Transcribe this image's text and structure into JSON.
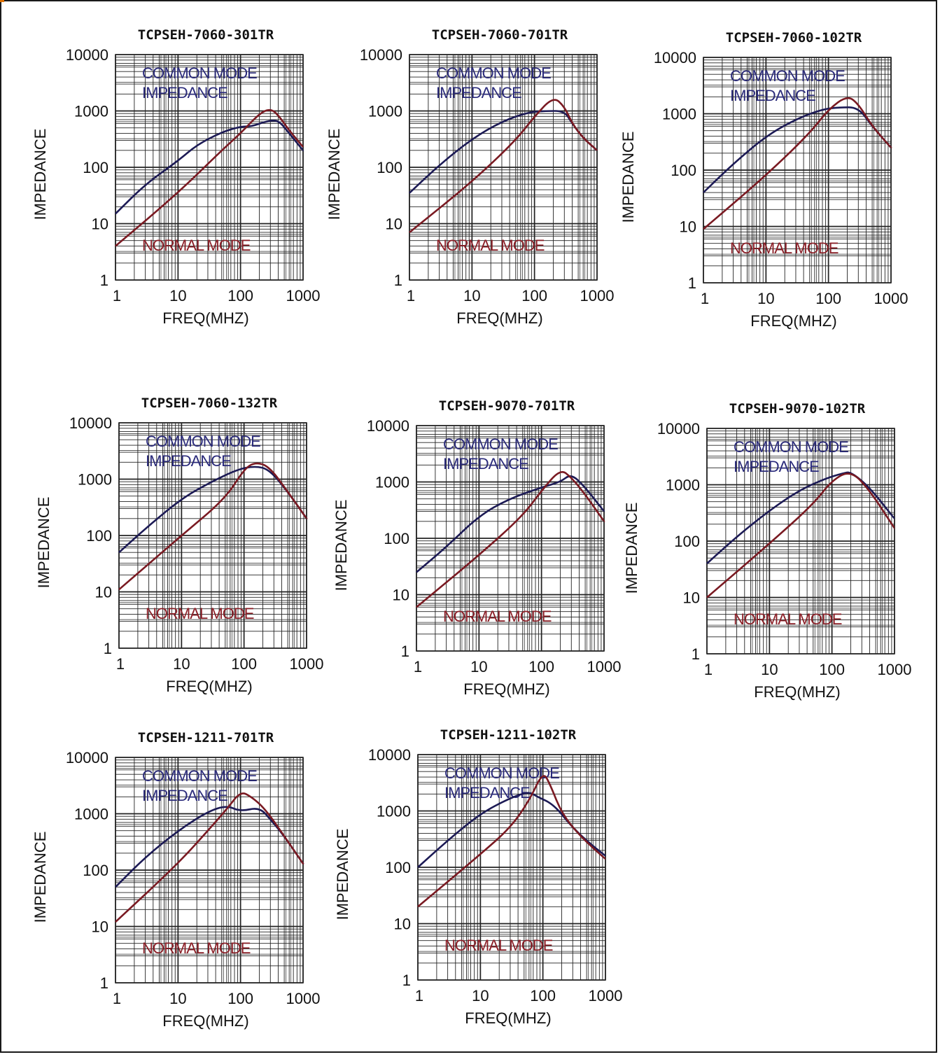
{
  "colors": {
    "common_mode": "#1c1a55",
    "normal_mode": "#7a1a22",
    "grid": "#222222",
    "annotation_common": "#2a2a7a",
    "annotation_normal": "#8a1e26"
  },
  "labels": {
    "ylabel": "IMPEDANCE",
    "xlabel": "FREQ(MHZ)",
    "common_line1": "COMMON MODE",
    "common_line2": "IMPEDANCE",
    "normal": "NORMAL MODE"
  },
  "axes": {
    "x_scale": "log",
    "y_scale": "log",
    "xlim": [
      1,
      1000
    ],
    "ylim": [
      1,
      10000
    ],
    "x_ticks": [
      "1",
      "10",
      "100",
      "1000"
    ],
    "y_ticks": [
      "1",
      "10",
      "100",
      "1000",
      "10000"
    ],
    "grid": true
  },
  "chart_data": [
    {
      "type": "line",
      "title": "TCPSEH-7060-301TR",
      "xlabel": "FREQ(MHZ)",
      "ylabel": "IMPEDANCE",
      "xlim": [
        1,
        1000
      ],
      "ylim": [
        1,
        10000
      ],
      "series": [
        {
          "name": "COMMON MODE IMPEDANCE",
          "points": [
            [
              1,
              15
            ],
            [
              3,
              50
            ],
            [
              10,
              130
            ],
            [
              20,
              250
            ],
            [
              50,
              420
            ],
            [
              100,
              530
            ],
            [
              150,
              530
            ],
            [
              250,
              650
            ],
            [
              400,
              700
            ],
            [
              600,
              400
            ],
            [
              1000,
              200
            ]
          ]
        },
        {
          "name": "NORMAL MODE",
          "points": [
            [
              1,
              4
            ],
            [
              10,
              35
            ],
            [
              50,
              200
            ],
            [
              100,
              400
            ],
            [
              200,
              900
            ],
            [
              300,
              1100
            ],
            [
              400,
              850
            ],
            [
              600,
              450
            ],
            [
              1000,
              230
            ]
          ]
        }
      ]
    },
    {
      "type": "line",
      "title": "TCPSEH-7060-701TR",
      "xlabel": "FREQ(MHZ)",
      "ylabel": "IMPEDANCE",
      "xlim": [
        1,
        1000
      ],
      "ylim": [
        1,
        10000
      ],
      "series": [
        {
          "name": "COMMON MODE IMPEDANCE",
          "points": [
            [
              1,
              35
            ],
            [
              3,
              110
            ],
            [
              10,
              320
            ],
            [
              30,
              650
            ],
            [
              80,
              950
            ],
            [
              150,
              1000
            ],
            [
              300,
              1000
            ],
            [
              400,
              600
            ],
            [
              600,
              330
            ],
            [
              1000,
              200
            ]
          ]
        },
        {
          "name": "NORMAL MODE",
          "points": [
            [
              1,
              7
            ],
            [
              10,
              55
            ],
            [
              50,
              300
            ],
            [
              100,
              800
            ],
            [
              200,
              1800
            ],
            [
              300,
              1200
            ],
            [
              400,
              600
            ],
            [
              600,
              330
            ],
            [
              1000,
              200
            ]
          ]
        }
      ]
    },
    {
      "type": "line",
      "title": "TCPSEH-7060-102TR",
      "xlabel": "FREQ(MHZ)",
      "ylabel": "IMPEDANCE",
      "xlim": [
        1,
        1000
      ],
      "ylim": [
        1,
        10000
      ],
      "series": [
        {
          "name": "COMMON MODE IMPEDANCE",
          "points": [
            [
              1,
              40
            ],
            [
              3,
              130
            ],
            [
              10,
              400
            ],
            [
              30,
              800
            ],
            [
              80,
              1200
            ],
            [
              150,
              1300
            ],
            [
              300,
              1300
            ],
            [
              500,
              600
            ],
            [
              1000,
              250
            ]
          ]
        },
        {
          "name": "NORMAL MODE",
          "points": [
            [
              1,
              9
            ],
            [
              10,
              80
            ],
            [
              50,
              450
            ],
            [
              100,
              1200
            ],
            [
              200,
              2100
            ],
            [
              300,
              1500
            ],
            [
              500,
              600
            ],
            [
              1000,
              250
            ]
          ]
        }
      ]
    },
    {
      "type": "line",
      "title": "TCPSEH-7060-132TR",
      "xlabel": "FREQ(MHZ)",
      "ylabel": "IMPEDANCE",
      "xlim": [
        1,
        1000
      ],
      "ylim": [
        1,
        10000
      ],
      "series": [
        {
          "name": "COMMON MODE IMPEDANCE",
          "points": [
            [
              1,
              50
            ],
            [
              3,
              150
            ],
            [
              10,
              450
            ],
            [
              30,
              900
            ],
            [
              80,
              1500
            ],
            [
              150,
              1700
            ],
            [
              250,
              1500
            ],
            [
              500,
              600
            ],
            [
              1000,
              200
            ]
          ]
        },
        {
          "name": "NORMAL MODE",
          "points": [
            [
              1,
              11
            ],
            [
              10,
              100
            ],
            [
              50,
              450
            ],
            [
              100,
              1500
            ],
            [
              150,
              2000
            ],
            [
              250,
              1700
            ],
            [
              500,
              600
            ],
            [
              1000,
              200
            ]
          ]
        }
      ]
    },
    {
      "type": "line",
      "title": "TCPSEH-9070-701TR",
      "xlabel": "FREQ(MHZ)",
      "ylabel": "IMPEDANCE",
      "xlim": [
        1,
        1000
      ],
      "ylim": [
        1,
        10000
      ],
      "series": [
        {
          "name": "COMMON MODE IMPEDANCE",
          "points": [
            [
              1,
              25
            ],
            [
              3,
              70
            ],
            [
              10,
              250
            ],
            [
              30,
              500
            ],
            [
              100,
              800
            ],
            [
              200,
              1000
            ],
            [
              300,
              1400
            ],
            [
              500,
              800
            ],
            [
              1000,
              300
            ]
          ]
        },
        {
          "name": "NORMAL MODE",
          "points": [
            [
              1,
              6
            ],
            [
              10,
              50
            ],
            [
              50,
              250
            ],
            [
              100,
              700
            ],
            [
              200,
              1700
            ],
            [
              300,
              1200
            ],
            [
              500,
              600
            ],
            [
              1000,
              200
            ]
          ]
        }
      ]
    },
    {
      "type": "line",
      "title": "TCPSEH-9070-102TR",
      "xlabel": "FREQ(MHZ)",
      "ylabel": "IMPEDANCE",
      "xlim": [
        1,
        1000
      ],
      "ylim": [
        1,
        10000
      ],
      "series": [
        {
          "name": "COMMON MODE IMPEDANCE",
          "points": [
            [
              1,
              40
            ],
            [
              3,
              120
            ],
            [
              10,
              350
            ],
            [
              30,
              800
            ],
            [
              80,
              1300
            ],
            [
              150,
              1600
            ],
            [
              200,
              1700
            ],
            [
              400,
              900
            ],
            [
              1000,
              250
            ]
          ]
        },
        {
          "name": "NORMAL MODE",
          "points": [
            [
              1,
              10
            ],
            [
              10,
              90
            ],
            [
              50,
              450
            ],
            [
              100,
              1200
            ],
            [
              200,
              1800
            ],
            [
              400,
              800
            ],
            [
              1000,
              170
            ]
          ]
        }
      ]
    },
    {
      "type": "line",
      "title": "TCPSEH-1211-701TR",
      "xlabel": "FREQ(MHZ)",
      "ylabel": "IMPEDANCE",
      "xlim": [
        1,
        1000
      ],
      "ylim": [
        1,
        10000
      ],
      "series": [
        {
          "name": "COMMON MODE IMPEDANCE",
          "points": [
            [
              1,
              50
            ],
            [
              3,
              170
            ],
            [
              10,
              500
            ],
            [
              30,
              1100
            ],
            [
              60,
              1400
            ],
            [
              100,
              1100
            ],
            [
              200,
              1300
            ],
            [
              300,
              800
            ],
            [
              500,
              400
            ],
            [
              1000,
              130
            ]
          ]
        },
        {
          "name": "NORMAL MODE",
          "points": [
            [
              1,
              12
            ],
            [
              10,
              130
            ],
            [
              30,
              500
            ],
            [
              60,
              1200
            ],
            [
              100,
              2500
            ],
            [
              150,
              2000
            ],
            [
              250,
              1200
            ],
            [
              500,
              400
            ],
            [
              1000,
              130
            ]
          ]
        }
      ]
    },
    {
      "type": "line",
      "title": "TCPSEH-1211-102TR",
      "xlabel": "FREQ(MHZ)",
      "ylabel": "IMPEDANCE",
      "xlim": [
        1,
        1000
      ],
      "ylim": [
        1,
        10000
      ],
      "series": [
        {
          "name": "COMMON MODE IMPEDANCE",
          "points": [
            [
              1,
              100
            ],
            [
              3,
              300
            ],
            [
              10,
              900
            ],
            [
              30,
              1700
            ],
            [
              60,
              2200
            ],
            [
              80,
              1800
            ],
            [
              150,
              1300
            ],
            [
              300,
              500
            ],
            [
              600,
              250
            ],
            [
              1000,
              160
            ]
          ]
        },
        {
          "name": "NORMAL MODE",
          "points": [
            [
              1,
              20
            ],
            [
              10,
              170
            ],
            [
              30,
              500
            ],
            [
              60,
              1500
            ],
            [
              100,
              5000
            ],
            [
              130,
              3000
            ],
            [
              200,
              900
            ],
            [
              400,
              350
            ],
            [
              1000,
              140
            ]
          ]
        }
      ]
    }
  ]
}
